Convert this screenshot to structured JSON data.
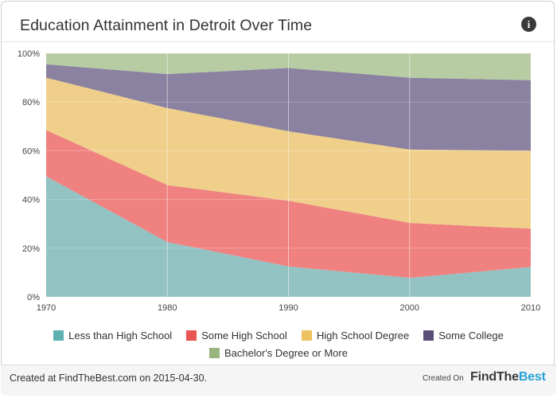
{
  "header": {
    "title": "Education Attainment in Detroit Over Time",
    "info_icon": "info-icon"
  },
  "chart_data": {
    "type": "area",
    "stacked": true,
    "x": [
      1970,
      1980,
      1990,
      2000,
      2010
    ],
    "x_tick_labels": [
      "1970",
      "1980",
      "1990",
      "2000",
      "2010"
    ],
    "y_tick_labels": [
      "0%",
      "20%",
      "40%",
      "60%",
      "80%",
      "100%"
    ],
    "ylim": [
      0,
      100
    ],
    "grid": true,
    "legend_placement": "bottom",
    "series": [
      {
        "name": "Less than High School",
        "color": "#92c2c2",
        "values": [
          49.5,
          22.5,
          12.5,
          7.8,
          12.3
        ]
      },
      {
        "name": "Some High School",
        "color": "#ef8280",
        "values": [
          19.0,
          23.4,
          27.0,
          22.6,
          15.7
        ]
      },
      {
        "name": "High School Degree",
        "color": "#f0cf8a",
        "values": [
          21.5,
          31.6,
          28.5,
          30.1,
          32.0
        ]
      },
      {
        "name": "Some College",
        "color": "#8a82a0",
        "values": [
          5.5,
          14.0,
          26.0,
          29.5,
          29.0
        ]
      },
      {
        "name": "Bachelor's Degree or More",
        "color": "#b7cca3",
        "values": [
          4.5,
          8.5,
          6.0,
          10.0,
          11.0
        ]
      }
    ]
  },
  "legend": {
    "row1": [
      {
        "label": "Less than High School",
        "color": "#5fb0b1"
      },
      {
        "label": "Some High School",
        "color": "#e85553"
      },
      {
        "label": "High School Degree",
        "color": "#eec261"
      },
      {
        "label": "Some College",
        "color": "#5a4f78"
      }
    ],
    "row2": [
      {
        "label": "Bachelor's Degree or More",
        "color": "#98b57f"
      }
    ]
  },
  "footer": {
    "credit": "Created at FindTheBest.com on 2015-04-30.",
    "created_on": "Created On",
    "brand_part1": "FindThe",
    "brand_part2": "Best"
  }
}
